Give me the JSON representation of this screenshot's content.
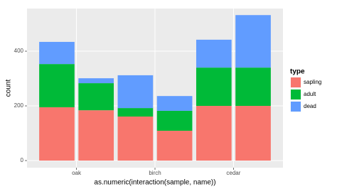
{
  "chart_data": {
    "type": "stacked-bar",
    "x": [
      1,
      2,
      3,
      4,
      5,
      6
    ],
    "series": [
      {
        "name": "sapling",
        "color": "#F8766D",
        "values": [
          195,
          184,
          161,
          109,
          200,
          200
        ]
      },
      {
        "name": "adult",
        "color": "#00BA38",
        "values": [
          158,
          99,
          31,
          73,
          140,
          140
        ]
      },
      {
        "name": "dead",
        "color": "#619CFF",
        "values": [
          81,
          18,
          120,
          54,
          102,
          192
        ]
      }
    ],
    "xlim": [
      0.24,
      6.76
    ],
    "xticks": [
      {
        "value": 1.5,
        "label": "oak"
      },
      {
        "value": 3.5,
        "label": "birch"
      },
      {
        "value": 5.5,
        "label": "cedar"
      }
    ],
    "ylim": [
      -26,
      556
    ],
    "yticks": [
      0,
      200,
      400
    ],
    "x_label": "as.numeric(interaction(sample, name))",
    "y_label": "count",
    "legend_title": "type",
    "legend_position": "right",
    "grid": true
  }
}
